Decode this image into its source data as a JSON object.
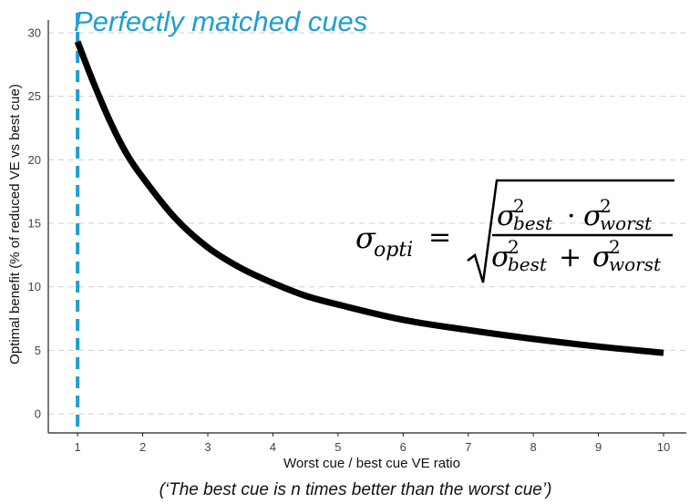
{
  "chart_data": {
    "type": "line",
    "xlabel": "Worst cue / best cue VE ratio",
    "ylabel": "Optimal benefit (% of reduced VE vs best cue)",
    "xlim": [
      0.55,
      10.35
    ],
    "ylim": [
      -1.5,
      31
    ],
    "x_ticks": [
      1,
      2,
      3,
      4,
      5,
      6,
      7,
      8,
      9,
      10
    ],
    "y_ticks": [
      0,
      5,
      10,
      15,
      20,
      25,
      30
    ],
    "grid": "horizontal dashed",
    "series": [
      {
        "x": [
          1,
          1.25,
          1.5,
          1.75,
          2,
          2.5,
          3,
          3.5,
          4,
          4.5,
          5,
          6,
          7,
          8,
          9,
          10
        ],
        "y": [
          29.3,
          26.0,
          23.0,
          20.5,
          18.6,
          15.4,
          13.1,
          11.5,
          10.3,
          9.3,
          8.6,
          7.4,
          6.6,
          5.9,
          5.3,
          4.8
        ],
        "color": "#000000"
      }
    ],
    "reference_line": {
      "x": 1,
      "color": "#1f9fcf",
      "style": "dashed",
      "label": "Perfectly matched cues"
    },
    "caption": "(‘The best cue is n times better than the worst cue’)",
    "formula": {
      "lhs": "σ",
      "lhs_sub": "opti",
      "eq": "=",
      "sigma": "σ",
      "sup": "2",
      "best": "best",
      "worst": "worst",
      "dot": "·",
      "plus": "+"
    }
  }
}
